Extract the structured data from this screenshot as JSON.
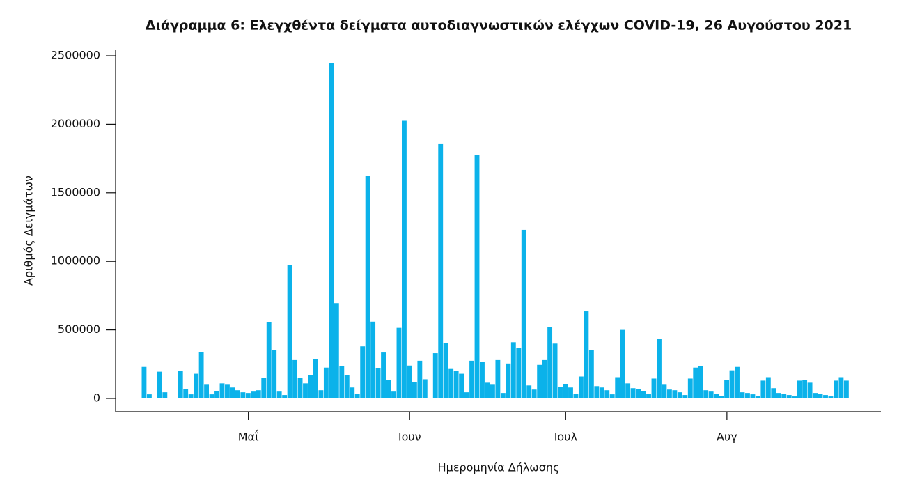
{
  "chart_data": {
    "type": "bar",
    "title": "Διάγραμμα 6: Ελεγχθέντα δείγματα αυτοδιαγνωστικών ελέγχων COVID-19, 26 Αυγούστου 2021",
    "x_label": "Ημερομηνία Δήλωσης",
    "y_label": "Αριθμός Δειγμάτων",
    "color": "#0bb2ea",
    "ylim": [
      0,
      2500000
    ],
    "yticks": [
      0,
      500000,
      1000000,
      1500000,
      2000000,
      2500000
    ],
    "categories": [
      null,
      null,
      null,
      null,
      null,
      null,
      null,
      null,
      null,
      null,
      null,
      null,
      null,
      null,
      null,
      null,
      null,
      null,
      null,
      null,
      "Μαΐ",
      null,
      null,
      null,
      null,
      null,
      null,
      null,
      null,
      null,
      null,
      null,
      null,
      null,
      null,
      null,
      null,
      null,
      null,
      null,
      null,
      null,
      null,
      null,
      null,
      null,
      null,
      null,
      null,
      null,
      null,
      "Ιουν",
      null,
      null,
      null,
      null,
      null,
      null,
      null,
      null,
      null,
      null,
      null,
      null,
      null,
      null,
      null,
      null,
      null,
      null,
      null,
      null,
      null,
      null,
      null,
      null,
      null,
      null,
      null,
      null,
      null,
      "Ιουλ",
      null,
      null,
      null,
      null,
      null,
      null,
      null,
      null,
      null,
      null,
      null,
      null,
      null,
      null,
      null,
      null,
      null,
      null,
      null,
      null,
      null,
      null,
      null,
      null,
      null,
      null,
      null,
      null,
      null,
      null,
      "Αυγ",
      null,
      null,
      null,
      null,
      null,
      null,
      null,
      null,
      null,
      null,
      null,
      null,
      null,
      null,
      null,
      null,
      null,
      null,
      null,
      null,
      null,
      null,
      null
    ],
    "values": [
      230000,
      30000,
      5000,
      195000,
      45000,
      0,
      0,
      200000,
      70000,
      30000,
      180000,
      340000,
      100000,
      30000,
      55000,
      110000,
      100000,
      80000,
      60000,
      45000,
      40000,
      50000,
      60000,
      150000,
      555000,
      355000,
      50000,
      25000,
      975000,
      280000,
      150000,
      110000,
      170000,
      285000,
      60000,
      225000,
      2445000,
      695000,
      235000,
      170000,
      80000,
      35000,
      380000,
      1625000,
      560000,
      220000,
      335000,
      135000,
      50000,
      515000,
      2025000,
      240000,
      120000,
      275000,
      140000,
      0,
      330000,
      1855000,
      405000,
      215000,
      200000,
      180000,
      45000,
      275000,
      1775000,
      265000,
      115000,
      100000,
      280000,
      40000,
      255000,
      410000,
      370000,
      1230000,
      95000,
      65000,
      245000,
      280000,
      520000,
      400000,
      85000,
      105000,
      80000,
      35000,
      160000,
      635000,
      355000,
      90000,
      80000,
      60000,
      30000,
      155000,
      500000,
      110000,
      75000,
      70000,
      55000,
      35000,
      145000,
      435000,
      100000,
      65000,
      60000,
      45000,
      25000,
      145000,
      225000,
      235000,
      60000,
      50000,
      35000,
      20000,
      135000,
      205000,
      230000,
      45000,
      40000,
      30000,
      20000,
      130000,
      155000,
      75000,
      40000,
      35000,
      25000,
      15000,
      130000,
      135000,
      115000,
      40000,
      35000,
      25000,
      15000,
      130000,
      155000,
      130000
    ]
  }
}
